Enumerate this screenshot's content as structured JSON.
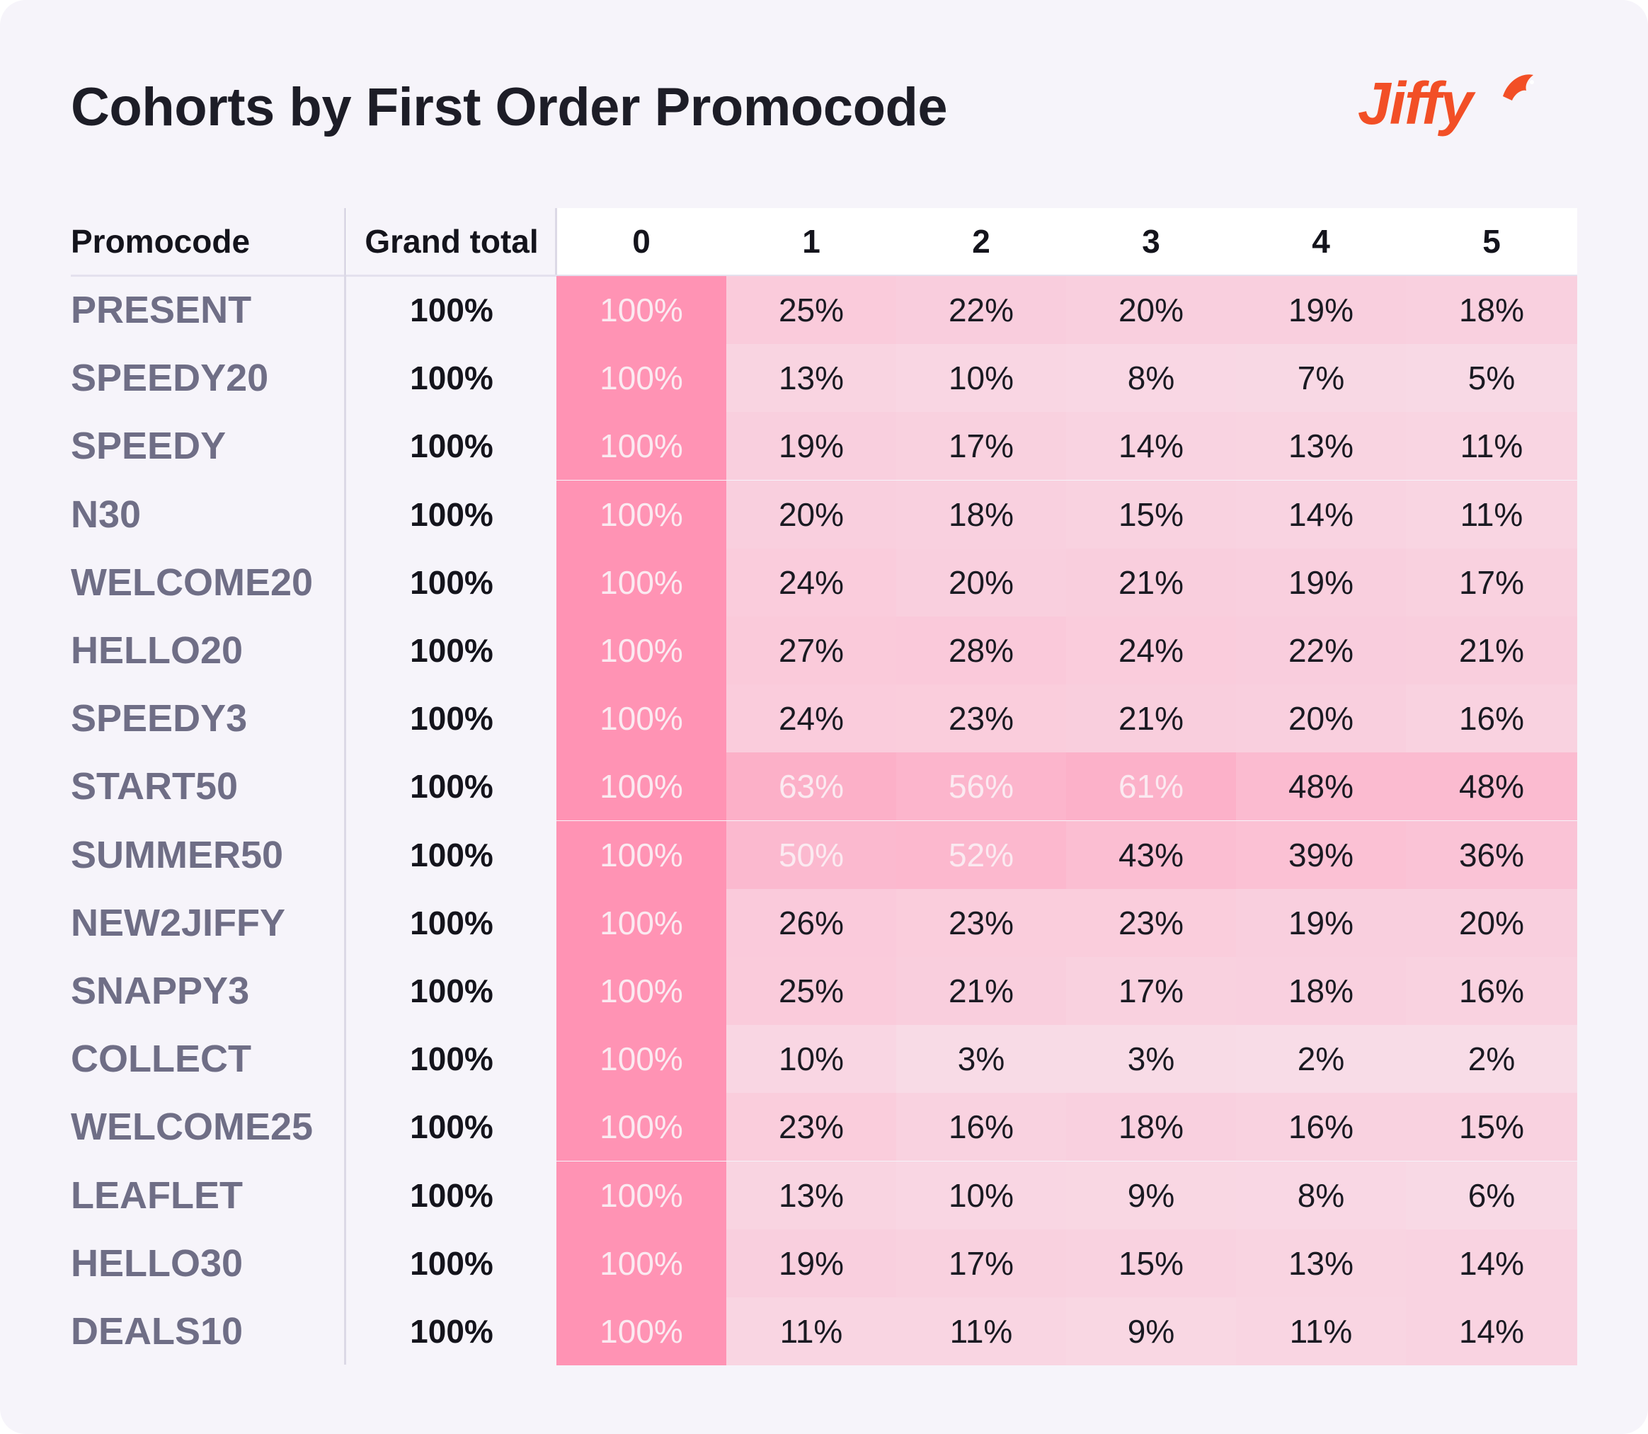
{
  "title": "Cohorts by First Order Promocode",
  "logo": {
    "text": "Jiffy",
    "color": "#f24f26"
  },
  "columns": {
    "promocode": "Promocode",
    "grand_total": "Grand total",
    "periods": [
      "0",
      "1",
      "2",
      "3",
      "4",
      "5"
    ]
  },
  "rows": [
    {
      "code": "PRESENT",
      "total": "100%",
      "cells": [
        "100%",
        "25%",
        "22%",
        "20%",
        "19%",
        "18%"
      ]
    },
    {
      "code": "SPEEDY20",
      "total": "100%",
      "cells": [
        "100%",
        "13%",
        "10%",
        "8%",
        "7%",
        "5%"
      ]
    },
    {
      "code": "SPEEDY",
      "total": "100%",
      "cells": [
        "100%",
        "19%",
        "17%",
        "14%",
        "13%",
        "11%"
      ]
    },
    {
      "code": "N30",
      "total": "100%",
      "cells": [
        "100%",
        "20%",
        "18%",
        "15%",
        "14%",
        "11%"
      ]
    },
    {
      "code": "WELCOME20",
      "total": "100%",
      "cells": [
        "100%",
        "24%",
        "20%",
        "21%",
        "19%",
        "17%"
      ]
    },
    {
      "code": "HELLO20",
      "total": "100%",
      "cells": [
        "100%",
        "27%",
        "28%",
        "24%",
        "22%",
        "21%"
      ]
    },
    {
      "code": "SPEEDY3",
      "total": "100%",
      "cells": [
        "100%",
        "24%",
        "23%",
        "21%",
        "20%",
        "16%"
      ]
    },
    {
      "code": "START50",
      "total": "100%",
      "cells": [
        "100%",
        "63%",
        "56%",
        "61%",
        "48%",
        "48%"
      ]
    },
    {
      "code": "SUMMER50",
      "total": "100%",
      "cells": [
        "100%",
        "50%",
        "52%",
        "43%",
        "39%",
        "36%"
      ]
    },
    {
      "code": "NEW2JIFFY",
      "total": "100%",
      "cells": [
        "100%",
        "26%",
        "23%",
        "23%",
        "19%",
        "20%"
      ]
    },
    {
      "code": "SNAPPY3",
      "total": "100%",
      "cells": [
        "100%",
        "25%",
        "21%",
        "17%",
        "18%",
        "16%"
      ]
    },
    {
      "code": "COLLECT",
      "total": "100%",
      "cells": [
        "100%",
        "10%",
        "3%",
        "3%",
        "2%",
        "2%"
      ]
    },
    {
      "code": "WELCOME25",
      "total": "100%",
      "cells": [
        "100%",
        "23%",
        "16%",
        "18%",
        "16%",
        "15%"
      ]
    },
    {
      "code": "LEAFLET",
      "total": "100%",
      "cells": [
        "100%",
        "13%",
        "10%",
        "9%",
        "8%",
        "6%"
      ]
    },
    {
      "code": "HELLO30",
      "total": "100%",
      "cells": [
        "100%",
        "19%",
        "17%",
        "15%",
        "13%",
        "14%"
      ]
    },
    {
      "code": "DEALS10",
      "total": "100%",
      "cells": [
        "100%",
        "11%",
        "11%",
        "9%",
        "11%",
        "14%"
      ]
    }
  ],
  "chart_data": {
    "type": "heatmap",
    "title": "Cohorts by First Order Promocode",
    "x": [
      0,
      1,
      2,
      3,
      4,
      5
    ],
    "y": [
      "PRESENT",
      "SPEEDY20",
      "SPEEDY",
      "N30",
      "WELCOME20",
      "HELLO20",
      "SPEEDY3",
      "START50",
      "SUMMER50",
      "NEW2JIFFY",
      "SNAPPY3",
      "COLLECT",
      "WELCOME25",
      "LEAFLET",
      "HELLO30",
      "DEALS10"
    ],
    "values": [
      [
        100,
        25,
        22,
        20,
        19,
        18
      ],
      [
        100,
        13,
        10,
        8,
        7,
        5
      ],
      [
        100,
        19,
        17,
        14,
        13,
        11
      ],
      [
        100,
        20,
        18,
        15,
        14,
        11
      ],
      [
        100,
        24,
        20,
        21,
        19,
        17
      ],
      [
        100,
        27,
        28,
        24,
        22,
        21
      ],
      [
        100,
        24,
        23,
        21,
        20,
        16
      ],
      [
        100,
        63,
        56,
        61,
        48,
        48
      ],
      [
        100,
        50,
        52,
        43,
        39,
        36
      ],
      [
        100,
        26,
        23,
        23,
        19,
        20
      ],
      [
        100,
        25,
        21,
        17,
        18,
        16
      ],
      [
        100,
        10,
        3,
        3,
        2,
        2
      ],
      [
        100,
        23,
        16,
        18,
        16,
        15
      ],
      [
        100,
        13,
        10,
        9,
        8,
        6
      ],
      [
        100,
        19,
        17,
        15,
        13,
        14
      ],
      [
        100,
        11,
        11,
        9,
        11,
        14
      ]
    ],
    "grand_total": [
      100,
      100,
      100,
      100,
      100,
      100,
      100,
      100,
      100,
      100,
      100,
      100,
      100,
      100,
      100,
      100
    ],
    "unit": "%",
    "color_low": "#f8dde8",
    "color_high": "#ff93b4"
  }
}
